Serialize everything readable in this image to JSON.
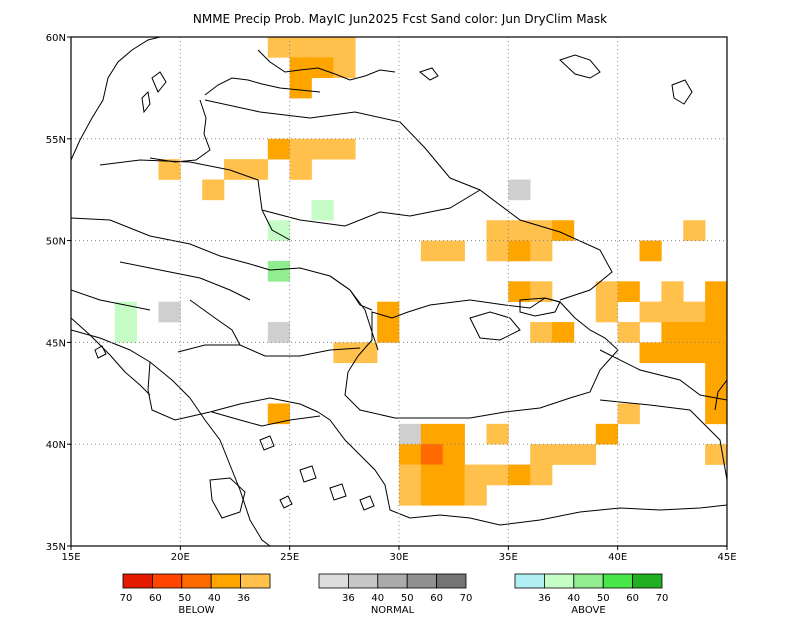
{
  "title": "NMME Precip Prob. MayIC  Jun2025 Fcst  Sand color: Jun DryClim Mask",
  "colors": {
    "below": [
      "#e31a00",
      "#ff4500",
      "#ff6a00",
      "#ffa500",
      "#ffc04c"
    ],
    "normal": [
      "#dcdcdc",
      "#c6c6c6",
      "#ababab",
      "#909090",
      "#747474"
    ],
    "above": [
      "#b0f0f4",
      "#c6fcc6",
      "#90ee90",
      "#48e848",
      "#22b022"
    ],
    "cell_colors": {
      "B36": "#ffc04c",
      "B40": "#ffa500",
      "B50": "#ff6a00",
      "N36": "#cfcfcf",
      "A36": "#c6fcc6",
      "A40": "#90ee90"
    }
  },
  "map": {
    "lon_range": [
      15,
      45
    ],
    "lat_range": [
      35,
      60
    ],
    "x_ticks": [
      {
        "lon": 15,
        "label": "15E"
      },
      {
        "lon": 20,
        "label": "20E"
      },
      {
        "lon": 25,
        "label": "25E"
      },
      {
        "lon": 30,
        "label": "30E"
      },
      {
        "lon": 35,
        "label": "35E"
      },
      {
        "lon": 40,
        "label": "40E"
      },
      {
        "lon": 45,
        "label": "45E"
      }
    ],
    "y_ticks": [
      {
        "lat": 35,
        "label": "35N"
      },
      {
        "lat": 40,
        "label": "40N"
      },
      {
        "lat": 45,
        "label": "45N"
      },
      {
        "lat": 50,
        "label": "50N"
      },
      {
        "lat": 55,
        "label": "55N"
      },
      {
        "lat": 60,
        "label": "60N"
      }
    ],
    "grid": "dotted",
    "cells": [
      {
        "lon": 24,
        "lat": 59,
        "c": "B36"
      },
      {
        "lon": 25,
        "lat": 59,
        "c": "B36"
      },
      {
        "lon": 26,
        "lat": 59,
        "c": "B36"
      },
      {
        "lon": 27,
        "lat": 59,
        "c": "B36"
      },
      {
        "lon": 25,
        "lat": 58,
        "c": "B40"
      },
      {
        "lon": 26,
        "lat": 58,
        "c": "B40"
      },
      {
        "lon": 27,
        "lat": 58,
        "c": "B36"
      },
      {
        "lon": 25,
        "lat": 57,
        "c": "B40"
      },
      {
        "lon": 24,
        "lat": 54,
        "c": "B40"
      },
      {
        "lon": 25,
        "lat": 54,
        "c": "B36"
      },
      {
        "lon": 26,
        "lat": 54,
        "c": "B36"
      },
      {
        "lon": 27,
        "lat": 54,
        "c": "B36"
      },
      {
        "lon": 19,
        "lat": 53,
        "c": "B36"
      },
      {
        "lon": 22,
        "lat": 53,
        "c": "B36"
      },
      {
        "lon": 23,
        "lat": 53,
        "c": "B36"
      },
      {
        "lon": 25,
        "lat": 53,
        "c": "B36"
      },
      {
        "lon": 21,
        "lat": 52,
        "c": "B36"
      },
      {
        "lon": 35,
        "lat": 52,
        "c": "N36"
      },
      {
        "lon": 26,
        "lat": 51,
        "c": "A36"
      },
      {
        "lon": 24,
        "lat": 50,
        "c": "A36"
      },
      {
        "lon": 34,
        "lat": 50,
        "c": "B36"
      },
      {
        "lon": 35,
        "lat": 50,
        "c": "B36"
      },
      {
        "lon": 36,
        "lat": 50,
        "c": "B36"
      },
      {
        "lon": 37,
        "lat": 50,
        "c": "B40"
      },
      {
        "lon": 43,
        "lat": 50,
        "c": "B36"
      },
      {
        "lon": 31,
        "lat": 49,
        "c": "B36"
      },
      {
        "lon": 32,
        "lat": 49,
        "c": "B36"
      },
      {
        "lon": 34,
        "lat": 49,
        "c": "B36"
      },
      {
        "lon": 35,
        "lat": 49,
        "c": "B40"
      },
      {
        "lon": 36,
        "lat": 49,
        "c": "B36"
      },
      {
        "lon": 41,
        "lat": 49,
        "c": "B40"
      },
      {
        "lon": 24,
        "lat": 48,
        "c": "A40"
      },
      {
        "lon": 35,
        "lat": 47,
        "c": "B40"
      },
      {
        "lon": 36,
        "lat": 47,
        "c": "B36"
      },
      {
        "lon": 39,
        "lat": 47,
        "c": "B36"
      },
      {
        "lon": 40,
        "lat": 47,
        "c": "B40"
      },
      {
        "lon": 42,
        "lat": 47,
        "c": "B36"
      },
      {
        "lon": 44,
        "lat": 47,
        "c": "B40"
      },
      {
        "lon": 39,
        "lat": 46,
        "c": "B36"
      },
      {
        "lon": 41,
        "lat": 46,
        "c": "B36"
      },
      {
        "lon": 42,
        "lat": 46,
        "c": "B36"
      },
      {
        "lon": 43,
        "lat": 46,
        "c": "B36"
      },
      {
        "lon": 44,
        "lat": 46,
        "c": "B40"
      },
      {
        "lon": 17,
        "lat": 46,
        "c": "A36"
      },
      {
        "lon": 19,
        "lat": 46,
        "c": "N36"
      },
      {
        "lon": 29,
        "lat": 46,
        "c": "B40"
      },
      {
        "lon": 17,
        "lat": 45,
        "c": "A36"
      },
      {
        "lon": 24,
        "lat": 45,
        "c": "N36"
      },
      {
        "lon": 29,
        "lat": 45,
        "c": "B40"
      },
      {
        "lon": 36,
        "lat": 45,
        "c": "B36"
      },
      {
        "lon": 37,
        "lat": 45,
        "c": "B40"
      },
      {
        "lon": 40,
        "lat": 45,
        "c": "B36"
      },
      {
        "lon": 42,
        "lat": 45,
        "c": "B40"
      },
      {
        "lon": 43,
        "lat": 45,
        "c": "B40"
      },
      {
        "lon": 44,
        "lat": 45,
        "c": "B40"
      },
      {
        "lon": 27,
        "lat": 44,
        "c": "B36"
      },
      {
        "lon": 28,
        "lat": 44,
        "c": "B36"
      },
      {
        "lon": 41,
        "lat": 44,
        "c": "B40"
      },
      {
        "lon": 42,
        "lat": 44,
        "c": "B40"
      },
      {
        "lon": 43,
        "lat": 44,
        "c": "B40"
      },
      {
        "lon": 44,
        "lat": 44,
        "c": "B40"
      },
      {
        "lon": 44,
        "lat": 43,
        "c": "B40"
      },
      {
        "lon": 44,
        "lat": 42,
        "c": "B40"
      },
      {
        "lon": 24,
        "lat": 41,
        "c": "B40"
      },
      {
        "lon": 40,
        "lat": 41,
        "c": "B36"
      },
      {
        "lon": 44,
        "lat": 41,
        "c": "B40"
      },
      {
        "lon": 30,
        "lat": 40,
        "c": "N36"
      },
      {
        "lon": 31,
        "lat": 40,
        "c": "B40"
      },
      {
        "lon": 32,
        "lat": 40,
        "c": "B40"
      },
      {
        "lon": 34,
        "lat": 40,
        "c": "B36"
      },
      {
        "lon": 39,
        "lat": 40,
        "c": "B40"
      },
      {
        "lon": 30,
        "lat": 39,
        "c": "B40"
      },
      {
        "lon": 31,
        "lat": 39,
        "c": "B50"
      },
      {
        "lon": 32,
        "lat": 39,
        "c": "B40"
      },
      {
        "lon": 36,
        "lat": 39,
        "c": "B36"
      },
      {
        "lon": 37,
        "lat": 39,
        "c": "B36"
      },
      {
        "lon": 38,
        "lat": 39,
        "c": "B36"
      },
      {
        "lon": 44,
        "lat": 39,
        "c": "B36"
      },
      {
        "lon": 30,
        "lat": 38,
        "c": "B36"
      },
      {
        "lon": 31,
        "lat": 38,
        "c": "B40"
      },
      {
        "lon": 32,
        "lat": 38,
        "c": "B40"
      },
      {
        "lon": 33,
        "lat": 38,
        "c": "B36"
      },
      {
        "lon": 34,
        "lat": 38,
        "c": "B36"
      },
      {
        "lon": 35,
        "lat": 38,
        "c": "B40"
      },
      {
        "lon": 36,
        "lat": 38,
        "c": "B36"
      },
      {
        "lon": 30,
        "lat": 37,
        "c": "B36"
      },
      {
        "lon": 31,
        "lat": 37,
        "c": "B40"
      },
      {
        "lon": 32,
        "lat": 37,
        "c": "B40"
      },
      {
        "lon": 33,
        "lat": 37,
        "c": "B36"
      }
    ]
  },
  "legend": {
    "below": {
      "ticks": [
        "70",
        "60",
        "50",
        "40",
        "36"
      ],
      "label": "BELOW"
    },
    "normal": {
      "ticks": [
        "36",
        "40",
        "50",
        "60",
        "70"
      ],
      "label": "NORMAL"
    },
    "above": {
      "ticks": [
        "36",
        "40",
        "50",
        "60",
        "70"
      ],
      "label": "ABOVE"
    }
  }
}
